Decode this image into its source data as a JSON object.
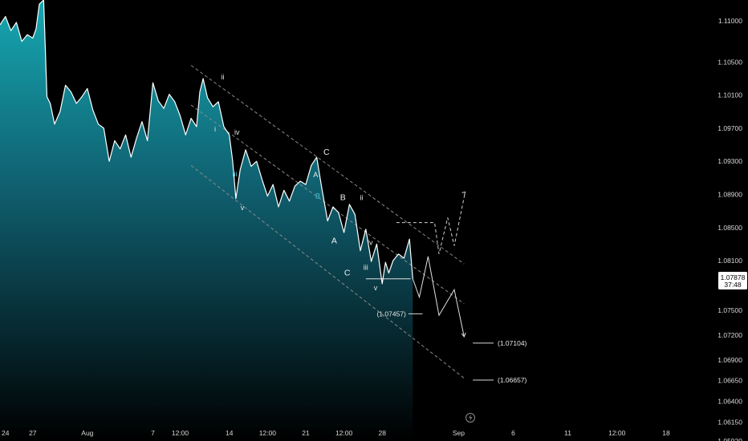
{
  "chart_data": {
    "type": "area",
    "instrument_hint": "EUR/USD style price chart",
    "y_ticks": [
      "1.11000",
      "1.10500",
      "1.10100",
      "1.09700",
      "1.09300",
      "1.08900",
      "1.08500",
      "1.08100",
      "1.07500",
      "1.07200",
      "1.06900",
      "1.06650",
      "1.06400",
      "1.06150",
      "1.05920"
    ],
    "y_tick_values": [
      1.11,
      1.105,
      1.101,
      1.097,
      1.093,
      1.089,
      1.085,
      1.081,
      1.075,
      1.072,
      1.069,
      1.0665,
      1.064,
      1.0615,
      1.0592
    ],
    "x_ticks": [
      {
        "label": "24",
        "x": 0.0
      },
      {
        "label": "27",
        "x": 3.0
      },
      {
        "label": "Aug",
        "x": 8.0
      },
      {
        "label": "7",
        "x": 14.0
      },
      {
        "label": "12:00",
        "x": 16.5
      },
      {
        "label": "14",
        "x": 21.0
      },
      {
        "label": "12:00",
        "x": 24.5
      },
      {
        "label": "21",
        "x": 28.0
      },
      {
        "label": "12:00",
        "x": 31.5
      },
      {
        "label": "28",
        "x": 35.0
      },
      {
        "label": "Sep",
        "x": 42.0
      },
      {
        "label": "6",
        "x": 47.0
      },
      {
        "label": "11",
        "x": 52.0
      },
      {
        "label": "12:00",
        "x": 56.5
      },
      {
        "label": "18",
        "x": 61.0
      }
    ],
    "x_range": [
      0.0,
      66.0
    ],
    "y_range": [
      1.0592,
      1.1125
    ],
    "grid": false,
    "last_price": "1.07878",
    "countdown": "37:48",
    "price_series": {
      "x": [
        0,
        0.5,
        1,
        1.5,
        2,
        2.5,
        3,
        3.3,
        3.6,
        4,
        4.3,
        4.6,
        5,
        5.5,
        6,
        6.5,
        7,
        7.5,
        8,
        8.5,
        9,
        9.5,
        10,
        10.5,
        11,
        11.5,
        12,
        12.5,
        13,
        13.5,
        14,
        14.5,
        15,
        15.5,
        16,
        16.5,
        17,
        17.5,
        18,
        18.3,
        18.6,
        19,
        19.5,
        20,
        20.5,
        21,
        21.3,
        21.6,
        22,
        22.5,
        23,
        23.5,
        24,
        24.5,
        25,
        25.5,
        26,
        26.5,
        27,
        27.5,
        28,
        28.5,
        29,
        29.5,
        30,
        30.5,
        31,
        31.5,
        32,
        32.5,
        33,
        33.5,
        34,
        34.5,
        35,
        35.3,
        35.6,
        36,
        36.5,
        37,
        37.5,
        37.8
      ],
      "y": [
        1.1095,
        1.1105,
        1.1088,
        1.1098,
        1.1075,
        1.1083,
        1.1079,
        1.109,
        1.112,
        1.1125,
        1.1008,
        1.1,
        1.0975,
        1.099,
        1.1022,
        1.1014,
        1.1,
        1.1008,
        1.1018,
        1.0992,
        1.0975,
        1.097,
        1.093,
        1.0955,
        1.0945,
        1.0962,
        1.0935,
        1.0958,
        1.0978,
        1.0955,
        1.1025,
        1.1003,
        1.0994,
        1.1011,
        1.1002,
        1.0985,
        1.0962,
        1.0982,
        1.0972,
        1.1014,
        1.103,
        1.1007,
        1.0996,
        1.1002,
        1.0972,
        1.0962,
        1.0931,
        1.0885,
        1.092,
        1.0944,
        1.0924,
        1.093,
        1.0908,
        1.0888,
        1.0902,
        1.0875,
        1.0895,
        1.0882,
        1.09,
        1.0906,
        1.0902,
        1.0925,
        1.0935,
        1.0895,
        1.0858,
        1.0875,
        1.0868,
        1.0844,
        1.0878,
        1.0866,
        1.0822,
        1.0848,
        1.0809,
        1.083,
        1.0782,
        1.0808,
        1.0795,
        1.081,
        1.0818,
        1.0813,
        1.0836,
        1.0788
      ]
    },
    "channel": {
      "upper": [
        [
          17.5,
          1.1046
        ],
        [
          42.5,
          1.0806
        ]
      ],
      "middle": [
        [
          17.5,
          1.0998
        ],
        [
          42.5,
          1.0758
        ]
      ],
      "lower": [
        [
          17.5,
          1.0925
        ],
        [
          42.5,
          1.0668
        ]
      ]
    },
    "projection_bear": [
      [
        37.8,
        1.0788
      ],
      [
        38.4,
        1.0766
      ],
      [
        39.2,
        1.0815
      ],
      [
        40.2,
        1.0744
      ],
      [
        41.6,
        1.0775
      ],
      [
        42.5,
        1.0718
      ]
    ],
    "projection_bull": [
      [
        36.3,
        1.0856
      ],
      [
        39.8,
        1.0856
      ],
      [
        40.2,
        1.0818
      ],
      [
        41.0,
        1.0862
      ],
      [
        41.6,
        1.0828
      ],
      [
        42.6,
        1.0893
      ]
    ],
    "support_line": [
      [
        33.5,
        1.0788
      ],
      [
        37.6,
        1.0788
      ]
    ],
    "target_ticks": [
      {
        "price": 1.07457,
        "label": "(1.07457)",
        "x_line": [
          37.4,
          38.7
        ]
      },
      {
        "price": 1.07104,
        "label": "(1.07104)",
        "x_line": [
          43.3,
          45.2
        ]
      },
      {
        "price": 1.06657,
        "label": "(1.06657)",
        "x_line": [
          43.3,
          45.2
        ]
      }
    ],
    "wave_labels": [
      {
        "text": "ii",
        "x": 20.4,
        "y": 1.1029,
        "style": "white"
      },
      {
        "text": "i",
        "x": 19.7,
        "y": 1.0966,
        "style": "white"
      },
      {
        "text": "iv",
        "x": 21.7,
        "y": 1.0962,
        "style": "white"
      },
      {
        "text": "iii",
        "x": 21.5,
        "y": 1.0912,
        "style": "cyan"
      },
      {
        "text": "v",
        "x": 22.2,
        "y": 1.0871,
        "style": "white"
      },
      {
        "text": "A",
        "x": 28.9,
        "y": 1.0911,
        "style": "white"
      },
      {
        "text": "B",
        "x": 29.1,
        "y": 1.0885,
        "style": "cyan"
      },
      {
        "text": "C",
        "x": 29.9,
        "y": 1.0938,
        "style": "abc"
      },
      {
        "text": "B",
        "x": 31.4,
        "y": 1.0883,
        "style": "abc"
      },
      {
        "text": "ii",
        "x": 33.1,
        "y": 1.0883,
        "style": "white"
      },
      {
        "text": "A",
        "x": 30.6,
        "y": 1.0831,
        "style": "abc"
      },
      {
        "text": "iv",
        "x": 33.9,
        "y": 1.0829,
        "style": "white"
      },
      {
        "text": "C",
        "x": 31.8,
        "y": 1.0792,
        "style": "abc"
      },
      {
        "text": "iii",
        "x": 33.5,
        "y": 1.0799,
        "style": "white"
      },
      {
        "text": "v",
        "x": 34.4,
        "y": 1.0774,
        "style": "white"
      }
    ],
    "colors": {
      "line": "#ffffff",
      "area_top": "#16a8b2",
      "area_bottom": "#000000",
      "channel": "#8a8a8a",
      "cyan_label": "#4fc3d4",
      "price_box": "#ffffff"
    }
  }
}
